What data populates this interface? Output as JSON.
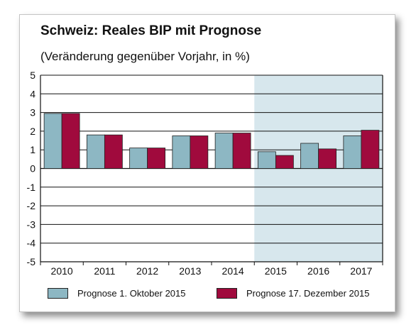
{
  "chart_data": {
    "type": "bar",
    "title": "Schweiz: Reales BIP mit Prognose",
    "subtitle": "(Veränderung gegenüber Vorjahr, in %)",
    "categories": [
      "2010",
      "2011",
      "2012",
      "2013",
      "2014",
      "2015",
      "2016",
      "2017"
    ],
    "series": [
      {
        "name": "Prognose 1. Oktober 2015",
        "values": [
          2.95,
          1.8,
          1.1,
          1.75,
          1.9,
          0.9,
          1.35,
          1.75
        ],
        "color": "#8db7c3"
      },
      {
        "name": "Prognose 17. Dezember 2015",
        "values": [
          2.95,
          1.8,
          1.1,
          1.75,
          1.9,
          0.7,
          1.05,
          2.05
        ],
        "color": "#a00a3d"
      }
    ],
    "ylim": [
      -5,
      5
    ],
    "yticks": [
      "5",
      "4",
      "3",
      "2",
      "1",
      "0",
      "-1",
      "-2",
      "-3",
      "-4",
      "-5"
    ],
    "forecast_shading_from": "2015",
    "forecast_shading_color": "#d7e7ed",
    "grid": true,
    "legend_position": "bottom"
  }
}
